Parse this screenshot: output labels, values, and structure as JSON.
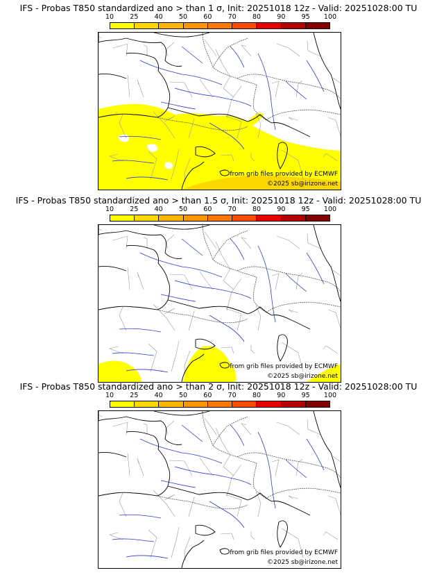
{
  "colorbar": {
    "ticks": [
      "10",
      "25",
      "40",
      "50",
      "60",
      "70",
      "80",
      "90",
      "95",
      "100"
    ],
    "colors": [
      "#ffff00",
      "#ffd700",
      "#ffb400",
      "#ff9600",
      "#ff7800",
      "#ff4b00",
      "#e60000",
      "#b40000",
      "#820000"
    ]
  },
  "panels": [
    {
      "title": "IFS - Probas T850  standardized ano > than 1 σ, Init: 20251018 12z - Valid: 20251028:00 TU",
      "credit_source": "from grib files provided by ECMWF",
      "credit_copyright": "©2025 sb@irizone.net",
      "prob_fill": "#ffff00",
      "prob_fill_high": "#ffd700",
      "variant": "wide"
    },
    {
      "title": "IFS - Probas T850  standardized ano > than 1.5 σ, Init: 20251018 12z - Valid: 20251028:00 TU",
      "credit_source": "from grib files provided by ECMWF",
      "credit_copyright": "©2025 sb@irizone.net",
      "prob_fill": "#ffff00",
      "variant": "partial"
    },
    {
      "title": "IFS - Probas T850  standardized ano > than 2 σ, Init: 20251018 12z - Valid: 20251028:00 TU",
      "credit_source": "from grib files provided by ECMWF",
      "credit_copyright": "©2025 sb@irizone.net",
      "prob_fill": "#ffff00",
      "variant": "none"
    }
  ]
}
